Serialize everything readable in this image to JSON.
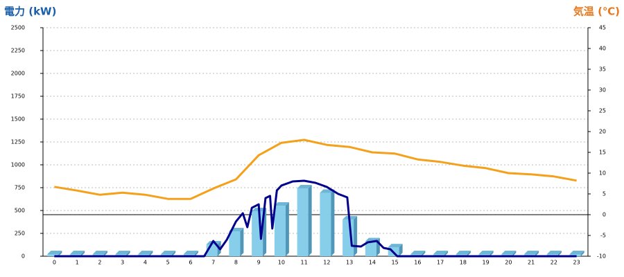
{
  "chart_data": {
    "type": "bar-line",
    "y_title": "電力 (kW)",
    "y2_title": "気温 (℃)",
    "categories": [
      "0",
      "1",
      "2",
      "3",
      "4",
      "5",
      "6",
      "7",
      "8",
      "9",
      "10",
      "11",
      "12",
      "13",
      "14",
      "15",
      "16",
      "17",
      "18",
      "19",
      "20",
      "21",
      "22",
      "23"
    ],
    "ylim": [
      0,
      2500
    ],
    "yticks": [
      0,
      250,
      500,
      750,
      1000,
      1250,
      1500,
      1750,
      2000,
      2250,
      2500
    ],
    "y2lim": [
      -10,
      45
    ],
    "y2ticks": [
      -10,
      -5,
      0,
      5,
      10,
      15,
      20,
      25,
      30,
      35,
      40,
      45
    ],
    "grid": true,
    "series": [
      {
        "kind": "bar",
        "color": "#87ceeb",
        "values": [
          0,
          0,
          0,
          0,
          0,
          0,
          0,
          106,
          250,
          470,
          530,
          720,
          670,
          380,
          140,
          75,
          0,
          0,
          0,
          0,
          0,
          0,
          0,
          0
        ]
      },
      {
        "kind": "line",
        "axis": "y2",
        "color": "#f5a01a",
        "values": [
          6.7,
          5.8,
          4.8,
          5.3,
          4.8,
          3.8,
          3.8,
          6.3,
          8.5,
          14.3,
          17.3,
          18,
          16.8,
          16.3,
          15,
          14.7,
          13.3,
          12.7,
          11.8,
          11.2,
          10,
          9.7,
          9.2,
          8.2
        ]
      },
      {
        "kind": "line",
        "color": "#00008b",
        "x": [
          0,
          6.6,
          7,
          7.3,
          7.6,
          8,
          8.3,
          8.5,
          8.7,
          9,
          9.1,
          9.3,
          9.5,
          9.6,
          9.8,
          10,
          10.5,
          11,
          11.5,
          12,
          12.5,
          12.9,
          13.1,
          13.5,
          13.8,
          14.2,
          14.5,
          14.8,
          15.1,
          23
        ],
        "values": [
          0,
          0,
          167,
          76,
          182,
          380,
          470,
          318,
          530,
          568,
          190,
          636,
          660,
          303,
          720,
          773,
          818,
          826,
          803,
          758,
          682,
          644,
          114,
          106,
          152,
          167,
          91,
          76,
          0,
          0
        ]
      }
    ]
  }
}
